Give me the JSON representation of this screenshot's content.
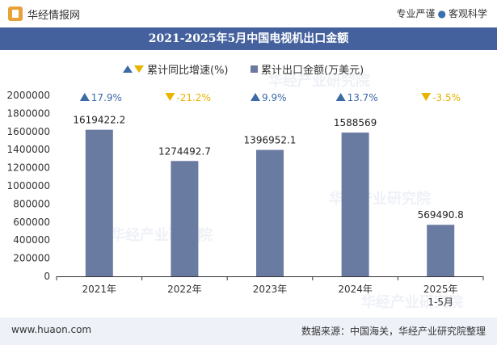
{
  "header": {
    "brand": "华经情报网",
    "slogan_left": "专业严谨",
    "slogan_dot": "●",
    "slogan_right": "客观科学"
  },
  "footer": {
    "website": "www.huaon.com",
    "source": "数据来源：中国海关，华经产业研究院整理"
  },
  "watermark": "华经产业研究院",
  "chart_data": {
    "type": "bar",
    "title": "2021-2025年5月中国电视机出口金额",
    "categories": [
      "2021年",
      "2022年",
      "2023年",
      "2024年",
      "2025年\n1-5月"
    ],
    "series": [
      {
        "name": "累计出口金额(万美元)",
        "color": "#6a7ba2",
        "values": [
          1619422.2,
          1274492.7,
          1396952.1,
          1588569,
          569490.8
        ],
        "labels": [
          "1619422.2",
          "1274492.7",
          "1396952.1",
          "1588569",
          "569490.8"
        ]
      },
      {
        "name": "累计同比增速(%)",
        "values": [
          17.9,
          -21.2,
          9.9,
          13.7,
          -3.5
        ],
        "labels": [
          "17.9%",
          "-21.2%",
          "9.9%",
          "13.7%",
          "-3.5%"
        ],
        "up_color": "#3d6aa8",
        "down_color": "#e8b400"
      }
    ],
    "ylim": [
      0,
      2000000
    ],
    "yticks": [
      0,
      200000,
      400000,
      600000,
      800000,
      1000000,
      1200000,
      1400000,
      1600000,
      1800000,
      2000000
    ],
    "ytick_labels": [
      "0",
      "200000",
      "400000",
      "600000",
      "800000",
      "1000000",
      "1200000",
      "1400000",
      "1600000",
      "1800000",
      "2000000"
    ],
    "grid": false,
    "legend": "top-center"
  }
}
